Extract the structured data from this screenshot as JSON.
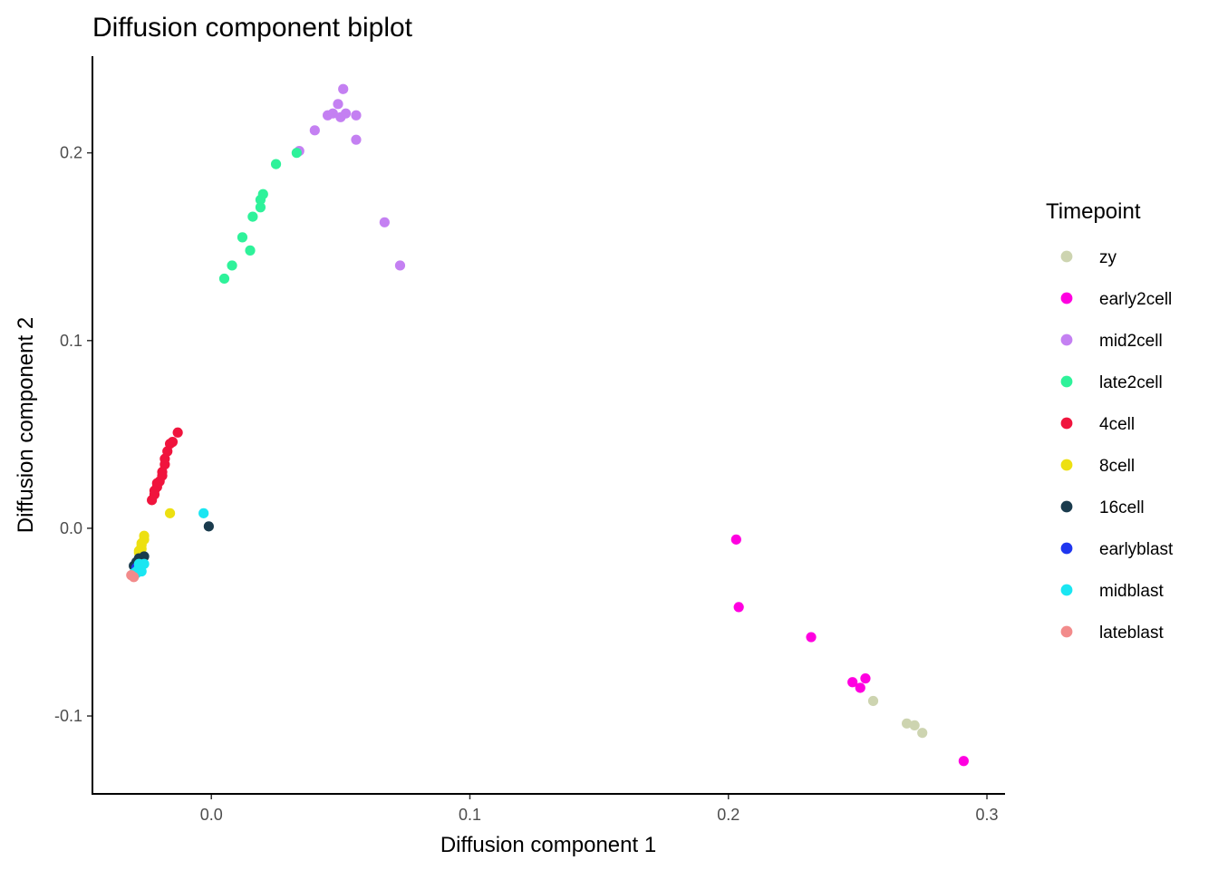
{
  "chart_data": {
    "type": "scatter",
    "title": "Diffusion component biplot",
    "xlabel": "Diffusion component 1",
    "ylabel": "Diffusion component 2",
    "xlim": [
      -0.046,
      0.307
    ],
    "ylim": [
      -0.1415,
      0.2515
    ],
    "x_ticks": [
      0.0,
      0.1,
      0.2,
      0.3
    ],
    "x_tick_labels": [
      "0.0",
      "0.1",
      "0.2",
      "0.3"
    ],
    "y_ticks": [
      -0.1,
      0.0,
      0.1,
      0.2
    ],
    "y_tick_labels": [
      "-0.1",
      "0.0",
      "0.1",
      "0.2"
    ],
    "grid": false,
    "legend": {
      "title": "Timepoint",
      "position": "right"
    },
    "series": [
      {
        "name": "zy",
        "color": "#CDD4B0",
        "points": [
          [
            0.256,
            -0.092
          ],
          [
            0.269,
            -0.104
          ],
          [
            0.272,
            -0.105
          ],
          [
            0.275,
            -0.109
          ]
        ]
      },
      {
        "name": "early2cell",
        "color": "#FF00E0",
        "points": [
          [
            0.203,
            -0.006
          ],
          [
            0.204,
            -0.042
          ],
          [
            0.232,
            -0.058
          ],
          [
            0.248,
            -0.082
          ],
          [
            0.251,
            -0.085
          ],
          [
            0.253,
            -0.08
          ],
          [
            0.291,
            -0.124
          ]
        ]
      },
      {
        "name": "mid2cell",
        "color": "#C480F2",
        "points": [
          [
            0.034,
            0.201
          ],
          [
            0.04,
            0.212
          ],
          [
            0.045,
            0.22
          ],
          [
            0.047,
            0.221
          ],
          [
            0.049,
            0.226
          ],
          [
            0.05,
            0.219
          ],
          [
            0.051,
            0.234
          ],
          [
            0.052,
            0.221
          ],
          [
            0.056,
            0.22
          ],
          [
            0.056,
            0.207
          ],
          [
            0.067,
            0.163
          ],
          [
            0.073,
            0.14
          ]
        ]
      },
      {
        "name": "late2cell",
        "color": "#2EF29A",
        "points": [
          [
            0.005,
            0.133
          ],
          [
            0.008,
            0.14
          ],
          [
            0.012,
            0.155
          ],
          [
            0.015,
            0.148
          ],
          [
            0.016,
            0.166
          ],
          [
            0.019,
            0.171
          ],
          [
            0.019,
            0.175
          ],
          [
            0.02,
            0.178
          ],
          [
            0.025,
            0.194
          ],
          [
            0.033,
            0.2
          ]
        ]
      },
      {
        "name": "4cell",
        "color": "#F0143D",
        "points": [
          [
            -0.013,
            0.051
          ],
          [
            -0.015,
            0.046
          ],
          [
            -0.016,
            0.045
          ],
          [
            -0.017,
            0.041
          ],
          [
            -0.018,
            0.037
          ],
          [
            -0.018,
            0.034
          ],
          [
            -0.019,
            0.03
          ],
          [
            -0.019,
            0.028
          ],
          [
            -0.02,
            0.025
          ],
          [
            -0.021,
            0.024
          ],
          [
            -0.021,
            0.022
          ],
          [
            -0.022,
            0.02
          ],
          [
            -0.022,
            0.018
          ],
          [
            -0.023,
            0.015
          ]
        ]
      },
      {
        "name": "8cell",
        "color": "#EDE011",
        "points": [
          [
            -0.016,
            0.008
          ],
          [
            -0.026,
            -0.004
          ],
          [
            -0.026,
            -0.006
          ],
          [
            -0.027,
            -0.008
          ],
          [
            -0.027,
            -0.009
          ],
          [
            -0.027,
            -0.011
          ],
          [
            -0.028,
            -0.012
          ],
          [
            -0.028,
            -0.013
          ]
        ]
      },
      {
        "name": "16cell",
        "color": "#1A3B4D",
        "points": [
          [
            -0.001,
            0.001
          ],
          [
            -0.026,
            -0.015
          ],
          [
            -0.028,
            -0.016
          ],
          [
            -0.029,
            -0.018
          ],
          [
            -0.03,
            -0.02
          ]
        ]
      },
      {
        "name": "earlyblast",
        "color": "#1F36EF",
        "points": [
          [
            -0.029,
            -0.021
          ],
          [
            -0.028,
            -0.022
          ]
        ]
      },
      {
        "name": "midblast",
        "color": "#1AE6F2",
        "points": [
          [
            -0.003,
            0.008
          ],
          [
            -0.026,
            -0.019
          ],
          [
            -0.027,
            -0.02
          ],
          [
            -0.028,
            -0.021
          ],
          [
            -0.028,
            -0.022
          ],
          [
            -0.029,
            -0.023
          ],
          [
            -0.029,
            -0.024
          ],
          [
            -0.03,
            -0.024
          ],
          [
            -0.027,
            -0.023
          ],
          [
            -0.028,
            -0.019
          ]
        ]
      },
      {
        "name": "lateblast",
        "color": "#F28B8B",
        "points": [
          [
            -0.03,
            -0.026
          ],
          [
            -0.031,
            -0.025
          ]
        ]
      }
    ]
  }
}
